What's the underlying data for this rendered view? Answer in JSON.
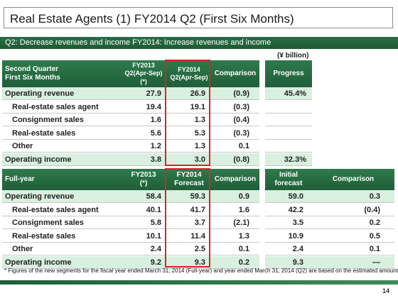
{
  "title": "Real Estate Agents (1) FY2014 Q2 (First Six Months)",
  "subtitle": "Q2: Decrease revenues and income FY2014: Increase revenues and income",
  "unit": "(¥ billion)",
  "q2": {
    "headers": {
      "label": "Second Quarter\nFirst Six Months",
      "fy2013": "FY2013\nQ2(Apr-Sep)\n(*)",
      "fy2014": "FY2014\nQ2(Apr-Sep)",
      "comparison": "Comparison",
      "progress": "Progress"
    },
    "rows": [
      {
        "label": "Operating revenue",
        "fy2013": "27.9",
        "fy2014": "26.9",
        "comparison": "(0.9)",
        "progress": "45.4%"
      },
      {
        "label": "Real-estate sales agent",
        "fy2013": "19.4",
        "fy2014": "19.1",
        "comparison": "(0.3)",
        "progress": ""
      },
      {
        "label": "Consignment sales",
        "fy2013": "1.6",
        "fy2014": "1.3",
        "comparison": "(0.4)",
        "progress": ""
      },
      {
        "label": "Real-estate sales",
        "fy2013": "5.6",
        "fy2014": "5.3",
        "comparison": "(0.3)",
        "progress": ""
      },
      {
        "label": "Other",
        "fy2013": "1.2",
        "fy2014": "1.3",
        "comparison": "0.1",
        "progress": ""
      },
      {
        "label": "Operating income",
        "fy2013": "3.8",
        "fy2014": "3.0",
        "comparison": "(0.8)",
        "progress": "32.3%"
      }
    ]
  },
  "fy": {
    "headers": {
      "label": "Full-year",
      "fy2013": "FY2013\n(*)",
      "fy2014": "FY2014\nForecast",
      "comparison": "Comparison",
      "initial": "Initial\nforecast",
      "comparison2": "Comparison"
    },
    "rows": [
      {
        "label": "Operating revenue",
        "fy2013": "58.4",
        "fy2014": "59.3",
        "comparison": "0.9",
        "initial": "59.0",
        "comparison2": "0.3"
      },
      {
        "label": "Real-estate sales agent",
        "fy2013": "40.1",
        "fy2014": "41.7",
        "comparison": "1.6",
        "initial": "42.2",
        "comparison2": "(0.4)"
      },
      {
        "label": "Consignment sales",
        "fy2013": "5.8",
        "fy2014": "3.7",
        "comparison": "(2.1)",
        "initial": "3.5",
        "comparison2": "0.2"
      },
      {
        "label": "Real-estate sales",
        "fy2013": "10.1",
        "fy2014": "11.4",
        "comparison": "1.3",
        "initial": "10.9",
        "comparison2": "0.5"
      },
      {
        "label": "Other",
        "fy2013": "2.4",
        "fy2014": "2.5",
        "comparison": "0.1",
        "initial": "2.4",
        "comparison2": "0.1"
      },
      {
        "label": "Operating income",
        "fy2013": "9.2",
        "fy2014": "9.3",
        "comparison": "0.2",
        "initial": "9.3",
        "comparison2": "—"
      }
    ]
  },
  "note": "* Figures of the new segments for the fiscal year ended March 31, 2014 (Full-year) and year ended March 31, 2014 (Q2) are based on the estimated amounts.",
  "page_number": "14",
  "colors": {
    "header_green": "#2f7a4c",
    "row_shade": "#d9efdf",
    "highlight_red": "#d8242a"
  }
}
